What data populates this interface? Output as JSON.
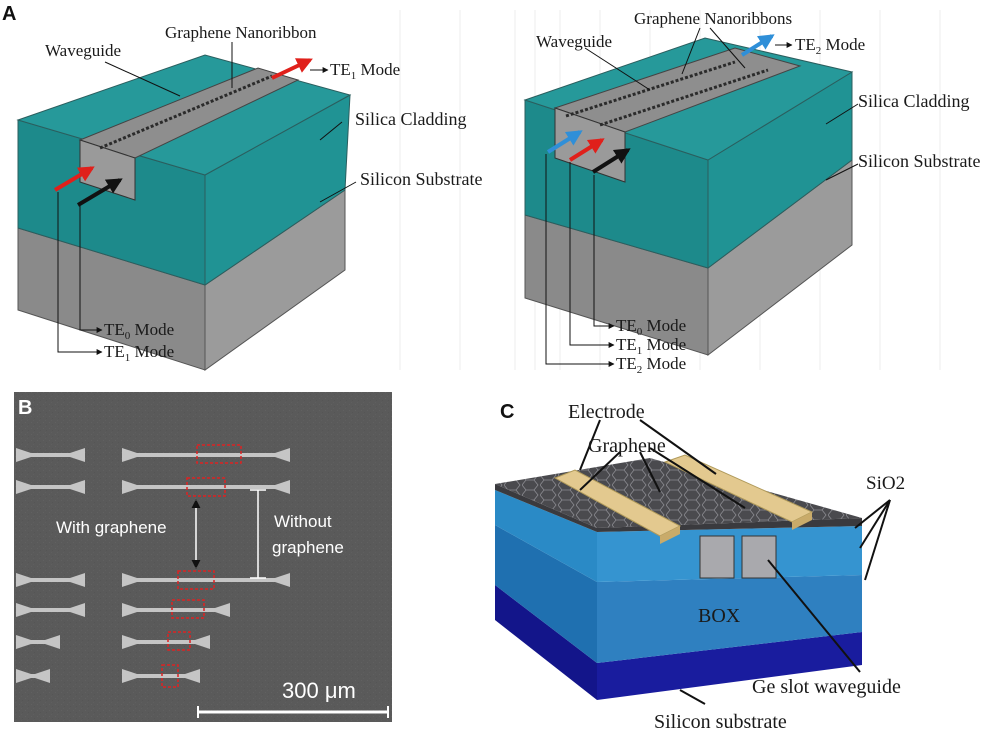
{
  "panel_a": {
    "letter": "A",
    "left": {
      "label_waveguide": "Waveguide",
      "label_ribbon": "Graphene Nanoribbon",
      "label_cladding": "Silica Cladding",
      "label_substrate": "Silicon Substrate",
      "out_mode": "TE",
      "out_mode_sub": "1",
      "out_mode_suffix": " Mode",
      "in_modes": [
        {
          "base": "TE",
          "sub": "0",
          "suffix": " Mode"
        },
        {
          "base": "TE",
          "sub": "1",
          "suffix": " Mode"
        }
      ]
    },
    "right": {
      "label_waveguide": "Waveguide",
      "label_ribbons": "Graphene Nanoribbons",
      "label_cladding": "Silica Cladding",
      "label_substrate": "Silicon Substrate",
      "out_mode": "TE",
      "out_mode_sub": "2",
      "out_mode_suffix": " Mode",
      "in_modes": [
        {
          "base": "TE",
          "sub": "0",
          "suffix": " Mode"
        },
        {
          "base": "TE",
          "sub": "1",
          "suffix": " Mode"
        },
        {
          "base": "TE",
          "sub": "2",
          "suffix": " Mode"
        }
      ]
    }
  },
  "panel_b": {
    "letter": "B",
    "label_with": "With graphene",
    "label_without_1": "Without",
    "label_without_2": "graphene",
    "scale_label": "300 μm"
  },
  "panel_c": {
    "letter": "C",
    "label_electrode": "Electrode",
    "label_graphene": "Graphene",
    "label_sio2": "SiO2",
    "label_box": "BOX",
    "label_ge": "Ge slot waveguide",
    "label_substrate": "Silicon substrate"
  },
  "colors": {
    "teal": "#1c8a8a",
    "teal_dark": "#0f6d70",
    "gray_block": "#8f8f8f",
    "sem_bg": "#5a5a5a",
    "box_blue": "#2f7fb8",
    "substrate_navy": "#14168f",
    "electrode": "#e3c98f",
    "red_arrow": "#e0201b",
    "blue_arrow": "#2f8fd8"
  }
}
